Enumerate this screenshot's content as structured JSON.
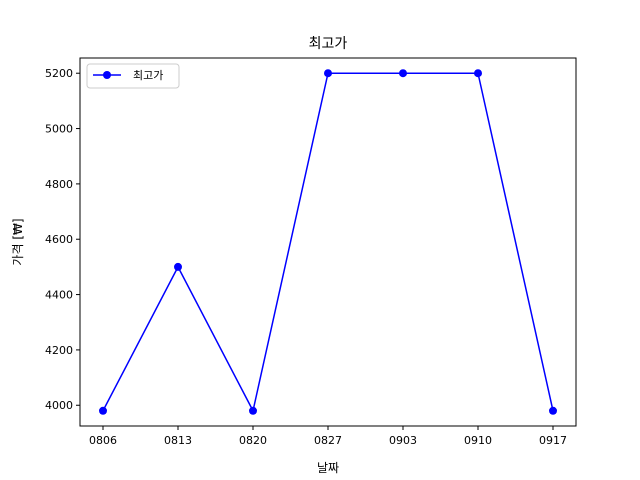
{
  "chart_data": {
    "type": "line",
    "title": "최고가",
    "xlabel": "날짜",
    "ylabel": "가격 [₩]",
    "categories": [
      "0806",
      "0813",
      "0820",
      "0827",
      "0903",
      "0910",
      "0917"
    ],
    "series": [
      {
        "name": "최고가",
        "values": [
          3980,
          4500,
          3980,
          5200,
          5200,
          5200,
          3980
        ],
        "color": "#0000ff",
        "marker": "circle"
      }
    ],
    "ylim": [
      3925,
      5255
    ],
    "yticks": [
      4000,
      4200,
      4400,
      4600,
      4800,
      5000,
      5200
    ],
    "grid": false,
    "legend_position": "top-left"
  }
}
